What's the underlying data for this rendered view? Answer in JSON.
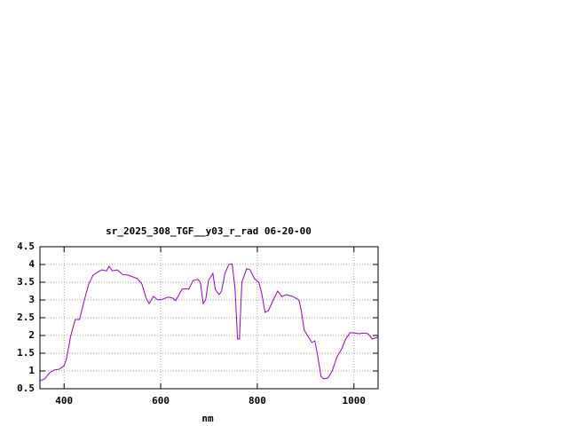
{
  "chart_data": {
    "type": "line",
    "title": "sr_2025_308_TGF__y03_r_rad 06-20-00",
    "x_label": "nm",
    "x": [
      350,
      360,
      370,
      380,
      390,
      400,
      405,
      414,
      423,
      432,
      442,
      451,
      460,
      469,
      478,
      488,
      493,
      500,
      510,
      521,
      533,
      552,
      561,
      570,
      576,
      585,
      594,
      603,
      616,
      625,
      631,
      644,
      653,
      658,
      667,
      677,
      682,
      688,
      693,
      699,
      708,
      713,
      721,
      726,
      733,
      741,
      748,
      754,
      759,
      763,
      768,
      778,
      785,
      794,
      803,
      809,
      816,
      823,
      833,
      842,
      851,
      860,
      873,
      886,
      891,
      897,
      906,
      913,
      919,
      924,
      932,
      937,
      946,
      955,
      965,
      974,
      983,
      992,
      1001,
      1011,
      1020,
      1029,
      1038,
      1049
    ],
    "values": [
      0.72,
      0.78,
      0.95,
      1.03,
      1.05,
      1.15,
      1.35,
      2.0,
      2.45,
      2.45,
      3.0,
      3.45,
      3.7,
      3.78,
      3.85,
      3.82,
      3.95,
      3.82,
      3.85,
      3.72,
      3.7,
      3.6,
      3.45,
      3.05,
      2.9,
      3.1,
      3.0,
      3.02,
      3.08,
      3.05,
      2.98,
      3.3,
      3.32,
      3.3,
      3.55,
      3.58,
      3.5,
      2.9,
      3.0,
      3.55,
      3.75,
      3.3,
      3.15,
      3.25,
      3.75,
      4.0,
      4.02,
      3.3,
      1.9,
      1.9,
      3.5,
      3.88,
      3.85,
      3.6,
      3.5,
      3.2,
      2.65,
      2.7,
      3.0,
      3.25,
      3.1,
      3.15,
      3.1,
      3.0,
      2.7,
      2.15,
      1.95,
      1.8,
      1.85,
      1.5,
      0.85,
      0.78,
      0.8,
      1.0,
      1.4,
      1.6,
      1.9,
      2.08,
      2.07,
      2.05,
      2.07,
      2.05,
      1.9,
      1.95
    ],
    "color": "#9400d3",
    "xlim": [
      350,
      1050
    ],
    "xticks": [
      400,
      600,
      800,
      1000
    ],
    "ylim": [
      0.5,
      4.5
    ],
    "yticks": [
      0.5,
      1,
      1.5,
      2,
      2.5,
      3,
      3.5,
      4,
      4.5
    ],
    "grid": true
  }
}
